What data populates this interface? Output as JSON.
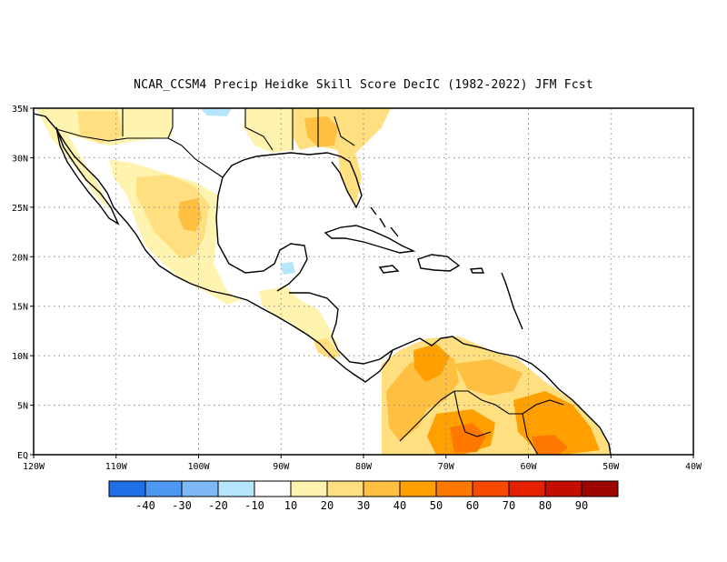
{
  "title": "NCAR_CCSM4 Precip Heidke Skill Score DecIC (1982-2022) JFM Fcst",
  "map": {
    "lon_range": [
      -120,
      -40
    ],
    "lat_range": [
      0,
      35
    ],
    "x_ticks": [
      {
        "lon": -120,
        "label": "120W"
      },
      {
        "lon": -110,
        "label": "110W"
      },
      {
        "lon": -100,
        "label": "100W"
      },
      {
        "lon": -90,
        "label": "90W"
      },
      {
        "lon": -80,
        "label": "80W"
      },
      {
        "lon": -70,
        "label": "70W"
      },
      {
        "lon": -60,
        "label": "60W"
      },
      {
        "lon": -50,
        "label": "50W"
      },
      {
        "lon": -40,
        "label": "40W"
      }
    ],
    "y_ticks": [
      {
        "lat": 0,
        "label": "EQ"
      },
      {
        "lat": 5,
        "label": "5N"
      },
      {
        "lat": 10,
        "label": "10N"
      },
      {
        "lat": 15,
        "label": "15N"
      },
      {
        "lat": 20,
        "label": "20N"
      },
      {
        "lat": 25,
        "label": "25N"
      },
      {
        "lat": 30,
        "label": "30N"
      },
      {
        "lat": 35,
        "label": "35N"
      }
    ],
    "grid": "dotted"
  },
  "colorbar": {
    "bins": [
      {
        "color": "#1f6fe8"
      },
      {
        "color": "#4c98f2"
      },
      {
        "color": "#7fb8f6"
      },
      {
        "color": "#b6e6fb"
      },
      {
        "color": "#ffffff"
      },
      {
        "color": "#fff3b0"
      },
      {
        "color": "#ffdf80"
      },
      {
        "color": "#ffbf40"
      },
      {
        "color": "#ffa000"
      },
      {
        "color": "#ff7800"
      },
      {
        "color": "#f54a00"
      },
      {
        "color": "#e42000"
      },
      {
        "color": "#c40c00"
      },
      {
        "color": "#9e0400"
      }
    ],
    "labels": [
      "-40",
      "-30",
      "-20",
      "-10",
      "10",
      "20",
      "30",
      "40",
      "50",
      "60",
      "70",
      "80",
      "90"
    ]
  }
}
